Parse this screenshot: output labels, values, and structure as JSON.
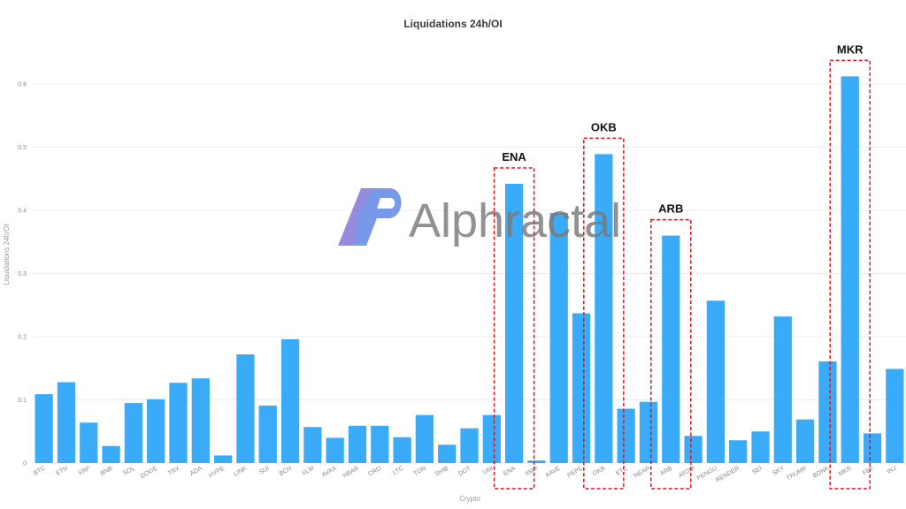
{
  "chart_data": {
    "type": "bar",
    "title": "Liquidations 24h/OI",
    "xlabel": "Crypto",
    "ylabel": "Liquidations 24h/OI",
    "ylim": [
      0,
      0.68
    ],
    "yticks": [
      "0",
      "0.1",
      "0.2",
      "0.3",
      "0.4",
      "0.5",
      "0.6"
    ],
    "grid": true,
    "categories": [
      "BTC",
      "ETH",
      "XRP",
      "BNB",
      "SOL",
      "DOGE",
      "TRX",
      "ADA",
      "HYPE",
      "LINK",
      "SUI",
      "BCH",
      "XLM",
      "AVAX",
      "HBAR",
      "CRO",
      "LTC",
      "TON",
      "SHIB",
      "DOT",
      "UNI",
      "ENA",
      "XMR",
      "AAVE",
      "PEPE",
      "OKB",
      "ETC",
      "NEAR",
      "ARB",
      "ATOM",
      "PENGU",
      "RENDER",
      "SEI",
      "SKY",
      "TRUMP",
      "BONK",
      "MKR",
      "FET",
      "INJ"
    ],
    "values": [
      0.109,
      0.128,
      0.064,
      0.027,
      0.095,
      0.101,
      0.127,
      0.134,
      0.012,
      0.172,
      0.091,
      0.196,
      0.057,
      0.04,
      0.059,
      0.059,
      0.041,
      0.076,
      0.029,
      0.055,
      0.076,
      0.442,
      0.004,
      0.396,
      0.237,
      0.489,
      0.086,
      0.097,
      0.36,
      0.043,
      0.257,
      0.036,
      0.05,
      0.232,
      0.069,
      0.161,
      0.612,
      0.047,
      0.149
    ],
    "highlights": [
      "ENA",
      "OKB",
      "ARB",
      "MKR"
    ],
    "colors": {
      "bar": "#3aabf8",
      "highlight_box": "#e0141e"
    }
  },
  "watermark": {
    "text": "Alphractal"
  }
}
